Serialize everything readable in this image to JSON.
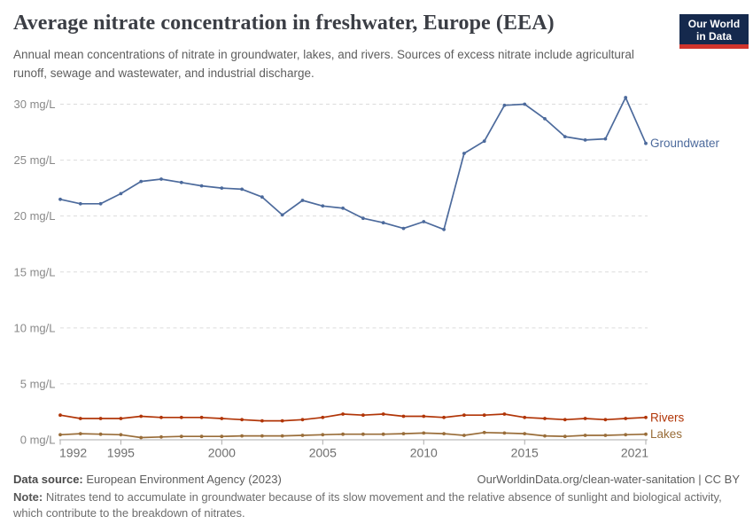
{
  "header": {
    "title": "Average nitrate concentration in freshwater, Europe (EEA)",
    "subtitle": "Annual mean concentrations of nitrate in groundwater, lakes, and rivers. Sources of excess nitrate include agricultural runoff, sewage and wastewater, and industrial discharge.",
    "logo": {
      "line1": "Our World",
      "line2": "in Data",
      "bg_color": "#15294d",
      "bar_color": "#d0342c"
    }
  },
  "chart_data": {
    "type": "line",
    "title": "Average nitrate concentration in freshwater, Europe (EEA)",
    "xlabel": "",
    "ylabel": "",
    "y_unit": "mg/L",
    "ylim": [
      0,
      31.5
    ],
    "xlim": [
      1992,
      2021
    ],
    "grid": "dashed-horizontal",
    "legend_position": "right-end-of-line",
    "x": [
      1992,
      1993,
      1994,
      1995,
      1996,
      1997,
      1998,
      1999,
      2000,
      2001,
      2002,
      2003,
      2004,
      2005,
      2006,
      2007,
      2008,
      2009,
      2010,
      2011,
      2012,
      2013,
      2014,
      2015,
      2016,
      2017,
      2018,
      2019,
      2020,
      2021
    ],
    "x_tick_labels": [
      "1992",
      "1995",
      "2000",
      "2005",
      "2010",
      "2015",
      "2021"
    ],
    "x_tick_values": [
      1992,
      1995,
      2000,
      2005,
      2010,
      2015,
      2021
    ],
    "y_tick_labels": [
      "0 mg/L",
      "5 mg/L",
      "10 mg/L",
      "15 mg/L",
      "20 mg/L",
      "25 mg/L",
      "30 mg/L"
    ],
    "y_tick_values": [
      0,
      5,
      10,
      15,
      20,
      25,
      30
    ],
    "series": [
      {
        "name": "Groundwater",
        "color": "#4c6a9c",
        "values": [
          21.5,
          21.1,
          21.1,
          22.0,
          23.1,
          23.3,
          23.0,
          22.7,
          22.5,
          22.4,
          21.7,
          20.1,
          21.4,
          20.9,
          20.7,
          19.8,
          19.4,
          18.9,
          19.5,
          18.8,
          25.6,
          26.7,
          29.9,
          30.0,
          28.7,
          27.1,
          26.8,
          26.9,
          30.6,
          26.5
        ]
      },
      {
        "name": "Rivers",
        "color": "#b13507",
        "values": [
          2.2,
          1.9,
          1.9,
          1.9,
          2.1,
          2.0,
          2.0,
          2.0,
          1.9,
          1.8,
          1.7,
          1.7,
          1.8,
          2.0,
          2.3,
          2.2,
          2.3,
          2.1,
          2.1,
          2.0,
          2.2,
          2.2,
          2.3,
          2.0,
          1.9,
          1.8,
          1.9,
          1.8,
          1.9,
          2.0
        ]
      },
      {
        "name": "Lakes",
        "color": "#996d39",
        "values": [
          0.45,
          0.55,
          0.5,
          0.45,
          0.2,
          0.25,
          0.3,
          0.3,
          0.3,
          0.35,
          0.35,
          0.35,
          0.4,
          0.45,
          0.5,
          0.5,
          0.5,
          0.55,
          0.6,
          0.55,
          0.4,
          0.65,
          0.6,
          0.55,
          0.35,
          0.3,
          0.4,
          0.4,
          0.45,
          0.5
        ]
      }
    ]
  },
  "footer": {
    "source_label": "Data source:",
    "source_text": " European Environment Agency (2023)",
    "credit": "OurWorldinData.org/clean-water-sanitation | CC BY",
    "note_label": "Note:",
    "note_text": " Nitrates tend to accumulate in groundwater because of its slow movement and the relative absence of sunlight and biological activity, which contribute to the breakdown of nitrates."
  }
}
